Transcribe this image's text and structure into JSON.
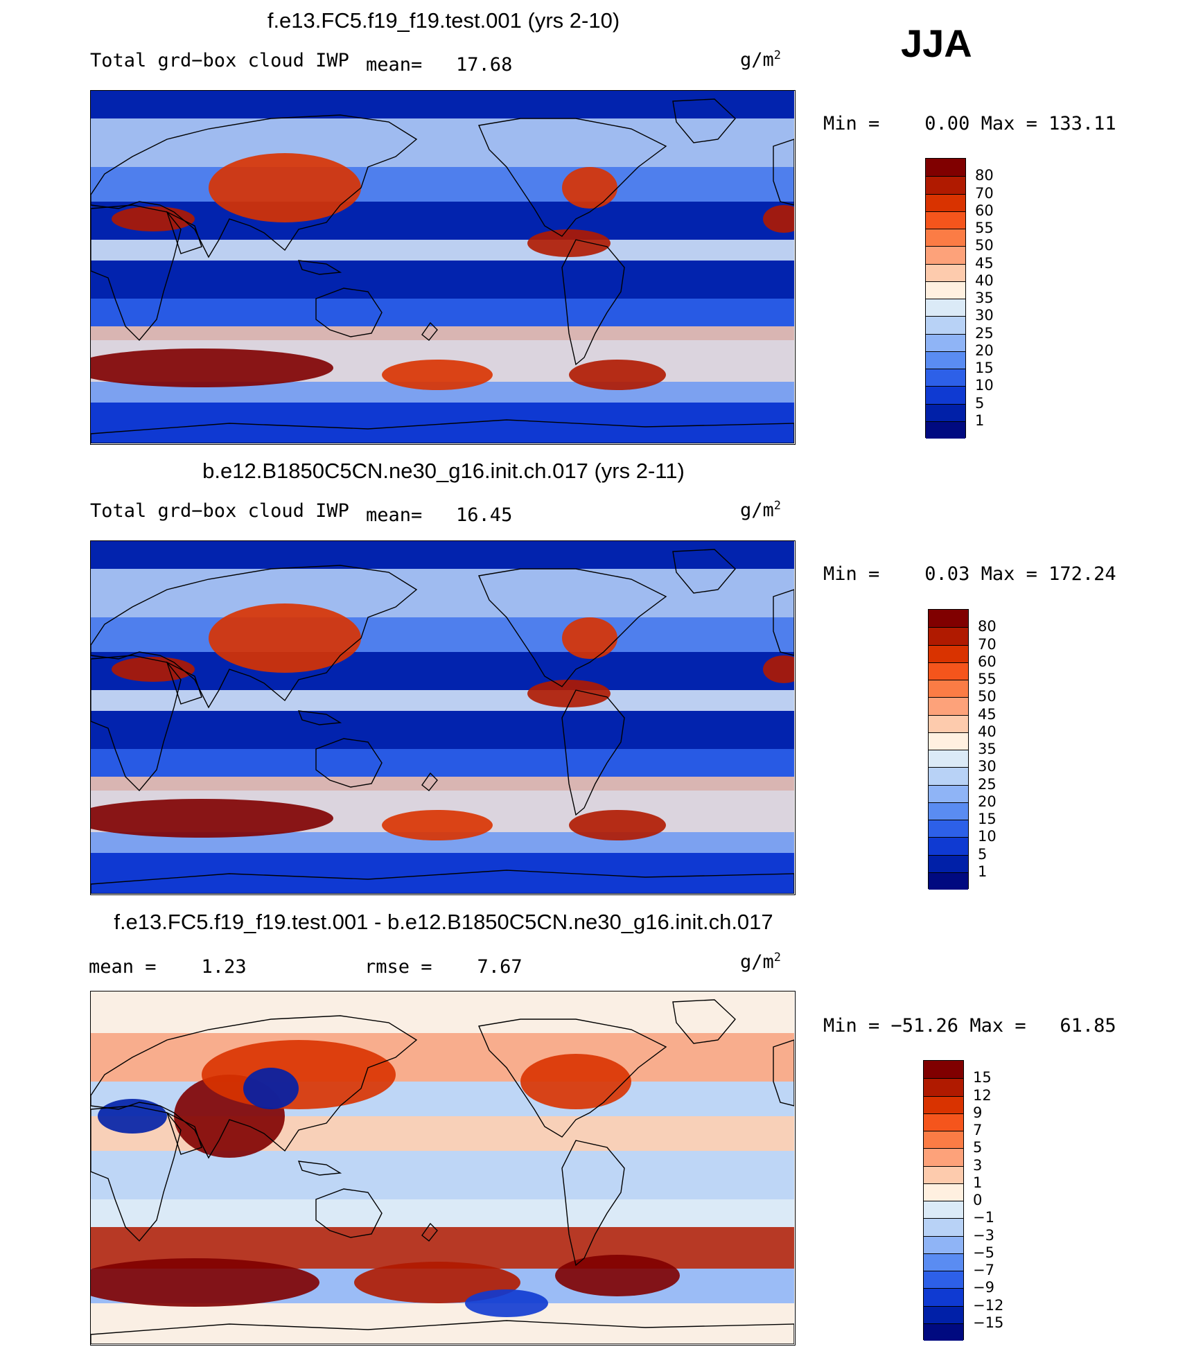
{
  "season": "JJA",
  "panels": [
    {
      "title": "f.e13.FC5.f19_f19.test.001 (yrs 2-10)",
      "left_text": "Total grd−box cloud IWP",
      "stat1": "mean=   17.68",
      "stat2": "",
      "units": "g/m",
      "units_sup": "2",
      "minmax": "Min =    0.00 Max = 133.11",
      "scale": "mean",
      "colorbar_labels": [
        "80",
        "70",
        "60",
        "55",
        "50",
        "45",
        "40",
        "35",
        "30",
        "25",
        "20",
        "15",
        "10",
        "5",
        "1"
      ]
    },
    {
      "title": "b.e12.B1850C5CN.ne30_g16.init.ch.017 (yrs 2-11)",
      "left_text": "Total grd−box cloud IWP",
      "stat1": "mean=   16.45",
      "stat2": "",
      "units": "g/m",
      "units_sup": "2",
      "minmax": "Min =    0.03 Max = 172.24",
      "scale": "mean",
      "colorbar_labels": [
        "80",
        "70",
        "60",
        "55",
        "50",
        "45",
        "40",
        "35",
        "30",
        "25",
        "20",
        "15",
        "10",
        "5",
        "1"
      ]
    },
    {
      "title": "f.e13.FC5.f19_f19.test.001 - b.e12.B1850C5CN.ne30_g16.init.ch.017",
      "left_text": "mean =    1.23",
      "stat1": "rmse =    7.67",
      "stat2": "",
      "units": "g/m",
      "units_sup": "2",
      "minmax": "Min = −51.26 Max =   61.85",
      "scale": "diff",
      "colorbar_labels": [
        "15",
        "12",
        "9",
        "7",
        "5",
        "3",
        "1",
        "0",
        "−1",
        "−3",
        "−5",
        "−7",
        "−9",
        "−12",
        "−15"
      ]
    }
  ],
  "colors": {
    "mean_scale": [
      "#800000",
      "#b01a00",
      "#d93300",
      "#f5551c",
      "#fb7c45",
      "#fda27a",
      "#fdcbad",
      "#fff0e0",
      "#dbeaf7",
      "#b8d2f6",
      "#8fb4f6",
      "#5a8cf2",
      "#2d60e8",
      "#0f3ad2",
      "#0020a8",
      "#000a80"
    ],
    "diff_scale": [
      "#800000",
      "#b01a00",
      "#d93300",
      "#f5551c",
      "#fb7c45",
      "#fda27a",
      "#fdcbad",
      "#fff0e0",
      "#dbeaf7",
      "#b8d2f6",
      "#8fb4f6",
      "#5a8cf2",
      "#2d60e8",
      "#0f3ad2",
      "#0020a8",
      "#000a80"
    ]
  }
}
